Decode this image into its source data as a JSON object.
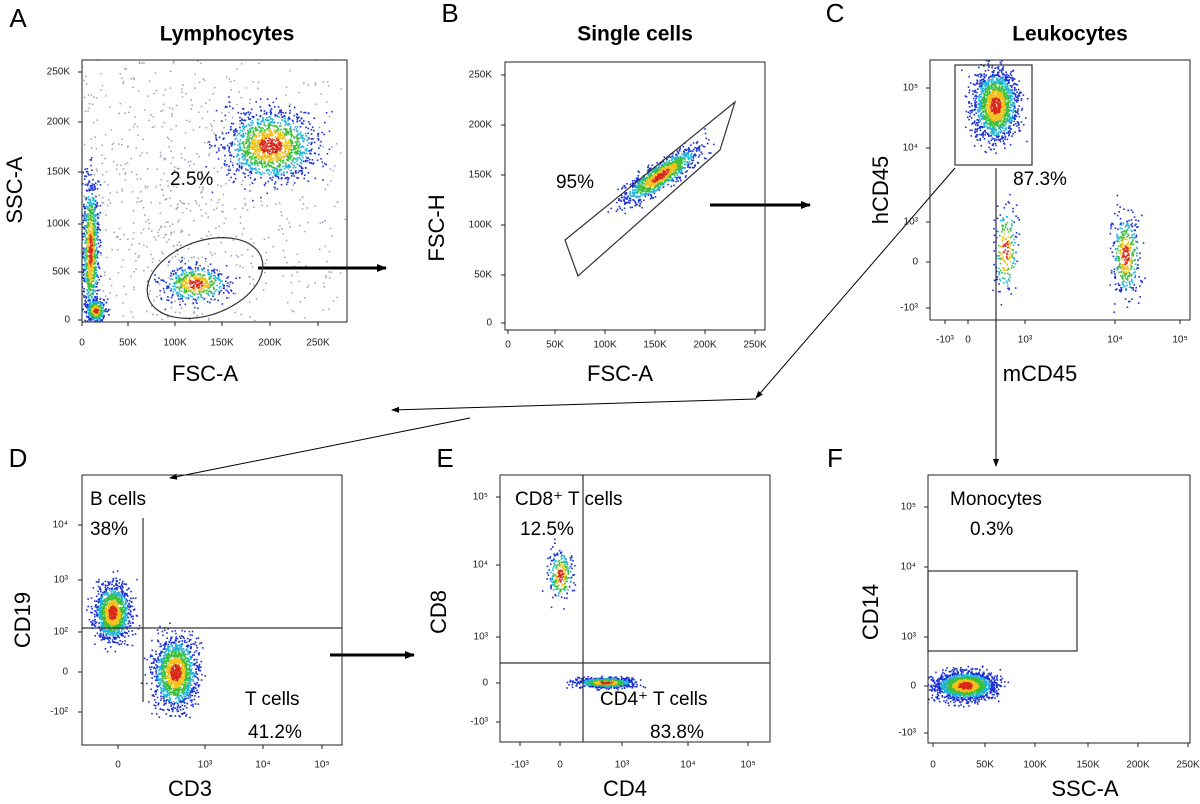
{
  "figure": {
    "panels": [
      {
        "letter": "A",
        "title": "Lymphocytes",
        "x_label": "FSC-A",
        "y_label": "SSC-A",
        "x_ticks": [
          "0",
          "50K",
          "100K",
          "150K",
          "200K",
          "250K"
        ],
        "y_ticks": [
          "0",
          "50K",
          "100K",
          "150K",
          "200K",
          "250K"
        ],
        "annotations": [
          "2.5%"
        ]
      },
      {
        "letter": "B",
        "title": "Single cells",
        "x_label": "FSC-A",
        "y_label": "FSC-H",
        "x_ticks": [
          "0",
          "50K",
          "100K",
          "150K",
          "200K",
          "250K"
        ],
        "y_ticks": [
          "0",
          "50K",
          "100K",
          "150K",
          "200K",
          "250K"
        ],
        "annotations": [
          "95%"
        ]
      },
      {
        "letter": "C",
        "title": "Leukocytes",
        "x_label": "mCD45",
        "y_label": "hCD45",
        "x_ticks": [
          "-10³",
          "0",
          "10³",
          "10⁴",
          "10⁵"
        ],
        "y_ticks": [
          "10⁵",
          "10⁴",
          "10³",
          "0",
          "-10³"
        ],
        "annotations": [
          "87.3%"
        ]
      },
      {
        "letter": "D",
        "x_label": "CD3",
        "y_label": "CD19",
        "x_ticks": [
          "0",
          "10³",
          "10⁴",
          "10⁵"
        ],
        "y_ticks": [
          "10⁴",
          "10³",
          "10²",
          "0",
          "-10²"
        ],
        "annotations": [
          "B cells",
          "38%",
          "T cells",
          "41.2%"
        ]
      },
      {
        "letter": "E",
        "x_label": "CD4",
        "y_label": "CD8",
        "x_ticks": [
          "-10³",
          "0",
          "10³",
          "10⁴",
          "10⁵"
        ],
        "y_ticks": [
          "10⁵",
          "10⁴",
          "10³",
          "0",
          "-10³"
        ],
        "annotations": [
          "CD8⁺ T cells",
          "12.5%",
          "CD4⁺ T cells",
          "83.8%"
        ]
      },
      {
        "letter": "F",
        "x_label": "SSC-A",
        "y_label": "CD14",
        "x_ticks": [
          "0",
          "50K",
          "100K",
          "150K",
          "200K",
          "250K"
        ],
        "y_ticks": [
          "10⁵",
          "10⁴",
          "10³",
          "0",
          "-10³"
        ],
        "annotations": [
          "Monocytes",
          "0.3%"
        ]
      }
    ]
  }
}
